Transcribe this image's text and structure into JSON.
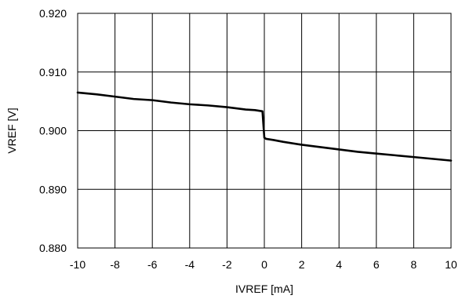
{
  "chart_data": {
    "type": "line",
    "title": "",
    "xlabel": "IVREF [mA]",
    "ylabel": "VREF [V]",
    "xlim": [
      -10,
      10
    ],
    "ylim": [
      0.88,
      0.92
    ],
    "x_ticks": [
      -10,
      -8,
      -6,
      -4,
      -2,
      0,
      2,
      4,
      6,
      8,
      10
    ],
    "y_ticks": [
      0.88,
      0.89,
      0.9,
      0.91,
      0.92
    ],
    "x_tick_labels": [
      "-10",
      "-8",
      "-6",
      "-4",
      "-2",
      "0",
      "2",
      "4",
      "6",
      "8",
      "10"
    ],
    "y_tick_labels": [
      "0.880",
      "0.890",
      "0.900",
      "0.910",
      "0.920"
    ],
    "grid": true,
    "legend": "none",
    "series": [
      {
        "color": "#000000",
        "x": [
          -10,
          -9,
          -8,
          -7,
          -6,
          -5,
          -4,
          -3,
          -2,
          -1.5,
          -1,
          -0.5,
          -0.1,
          0,
          0.1,
          0.5,
          1,
          2,
          3,
          4,
          5,
          6,
          7,
          8,
          9,
          10
        ],
        "y": [
          0.9065,
          0.9062,
          0.9058,
          0.9054,
          0.9052,
          0.9048,
          0.9045,
          0.9043,
          0.904,
          0.9038,
          0.9036,
          0.9035,
          0.9033,
          0.8988,
          0.8986,
          0.8984,
          0.8981,
          0.8976,
          0.8972,
          0.8968,
          0.8964,
          0.8961,
          0.8958,
          0.8955,
          0.8952,
          0.8949
        ]
      }
    ]
  }
}
